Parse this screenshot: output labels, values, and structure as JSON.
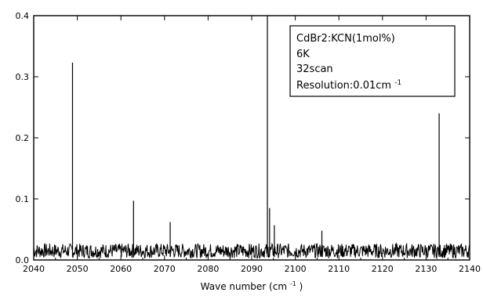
{
  "chart_data": {
    "type": "line",
    "title": "",
    "xlabel": "Wave number (cm",
    "xlabel_sup": "-1",
    "xlabel_close": ")",
    "ylabel": "",
    "xlim": [
      2040,
      2140
    ],
    "ylim": [
      0,
      0.4
    ],
    "x_ticks": [
      "2040",
      "2050",
      "2060",
      "2070",
      "2080",
      "2090",
      "2100",
      "2110",
      "2120",
      "2130",
      "2140"
    ],
    "y_ticks": [
      "0.0",
      "0.1",
      "0.2",
      "0.3",
      "0.4"
    ],
    "grid": false,
    "legend_box": {
      "lines": [
        "CdBr2:KCN(1mol%)",
        "6K",
        "32scan"
      ],
      "resolution_label": "Resolution:0.01cm",
      "resolution_sup": "-1"
    },
    "baseline": 0.015,
    "noise_amplitude": 0.012,
    "peaks": [
      {
        "x": 2048.9,
        "y": 0.323
      },
      {
        "x": 2062.9,
        "y": 0.097
      },
      {
        "x": 2071.3,
        "y": 0.062
      },
      {
        "x": 2093.6,
        "y": 0.4
      },
      {
        "x": 2094.1,
        "y": 0.085
      },
      {
        "x": 2095.2,
        "y": 0.057
      },
      {
        "x": 2106.1,
        "y": 0.048
      },
      {
        "x": 2133.0,
        "y": 0.24
      }
    ],
    "line_color": "#000000"
  }
}
